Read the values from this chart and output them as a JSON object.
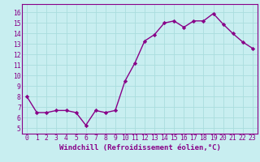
{
  "x": [
    0,
    1,
    2,
    3,
    4,
    5,
    6,
    7,
    8,
    9,
    10,
    11,
    12,
    13,
    14,
    15,
    16,
    17,
    18,
    19,
    20,
    21,
    22,
    23
  ],
  "y": [
    8.0,
    6.5,
    6.5,
    6.7,
    6.7,
    6.5,
    5.3,
    6.7,
    6.5,
    6.7,
    9.5,
    11.2,
    13.3,
    13.9,
    15.0,
    15.2,
    14.6,
    15.2,
    15.2,
    15.9,
    14.9,
    14.0,
    13.2,
    12.6
  ],
  "line_color": "#880088",
  "marker": "D",
  "markersize": 2.2,
  "linewidth": 1.0,
  "xlabel": "Windchill (Refroidissement éolien,°C)",
  "xlabel_fontsize": 6.5,
  "yticks": [
    5,
    6,
    7,
    8,
    9,
    10,
    11,
    12,
    13,
    14,
    15,
    16
  ],
  "ylim": [
    4.5,
    16.8
  ],
  "xlim": [
    -0.5,
    23.5
  ],
  "background_color": "#c8eef0",
  "grid_color": "#aadddd",
  "tick_fontsize": 5.8
}
